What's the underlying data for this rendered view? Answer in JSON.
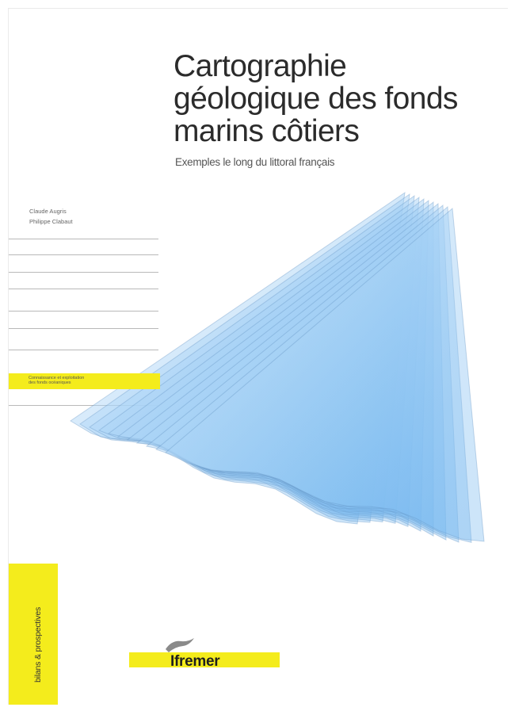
{
  "cover": {
    "title_lines": [
      "Cartographie",
      "géologique des fonds",
      "marins côtiers"
    ],
    "subtitle": "Exemples le long du littoral français",
    "authors": [
      "Claude Augris",
      "Philippe Clabaut"
    ],
    "series_text_lines": [
      "Connaissance et exploitation",
      "des fonds océaniques"
    ],
    "collection": "bilans & prospectives",
    "publisher": "Ifremer",
    "colors": {
      "accent_yellow": "#f4ec1c",
      "layer_blue": "#6fb4ee",
      "layer_edge": "#5f8fbf",
      "text": "#2b2b2b"
    },
    "icons": [
      "ifremer-logo-mark",
      "stacked-seafloor-layers-illustration"
    ]
  }
}
